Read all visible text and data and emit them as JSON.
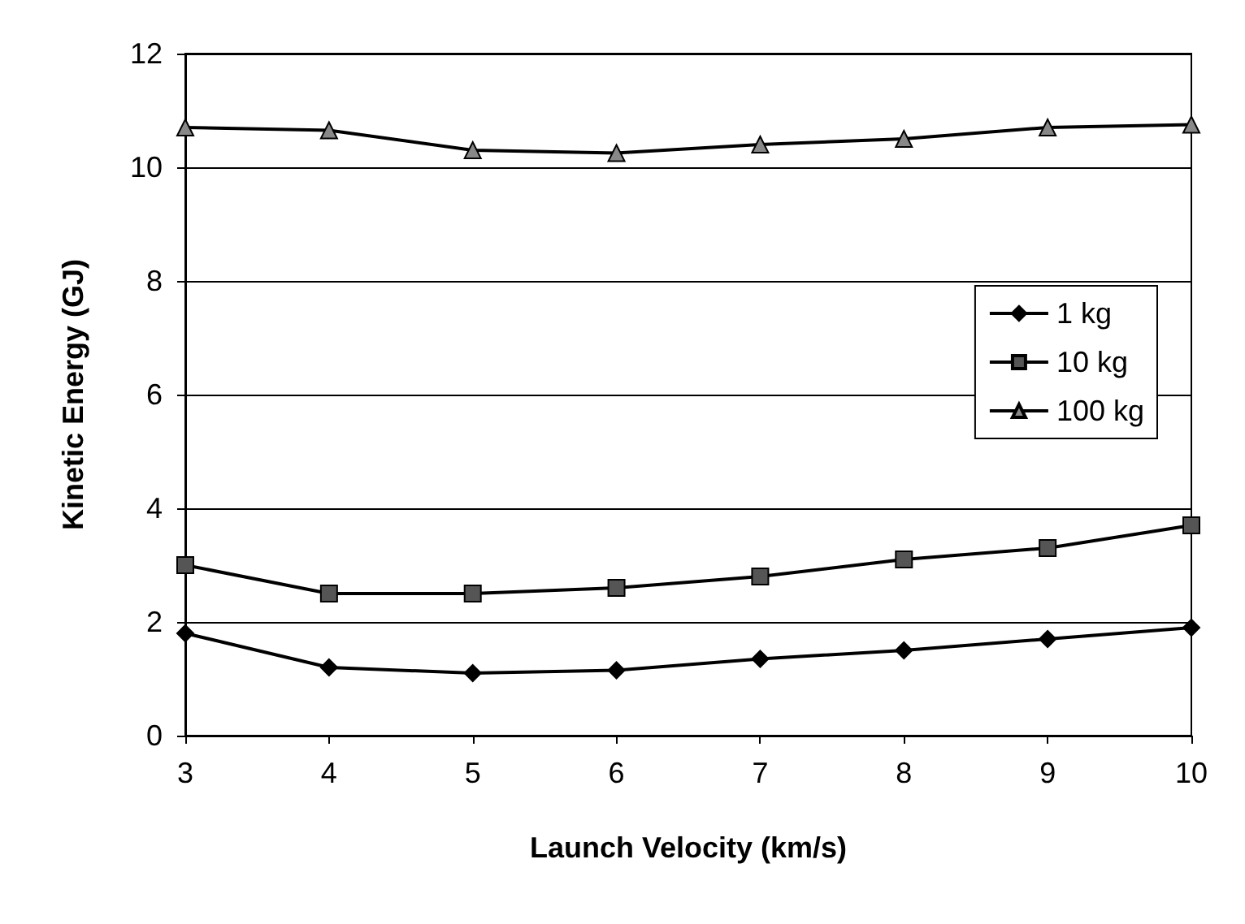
{
  "chart_data": {
    "type": "line",
    "xlabel": "Launch Velocity (km/s)",
    "ylabel": "Kinetic Energy (GJ)",
    "x": [
      3,
      4,
      5,
      6,
      7,
      8,
      9,
      10
    ],
    "series": [
      {
        "name": "1 kg",
        "color": "#000000",
        "marker": "diamond",
        "values": [
          1.8,
          1.2,
          1.1,
          1.15,
          1.35,
          1.5,
          1.7,
          1.9
        ]
      },
      {
        "name": "10 kg",
        "color": "#555555",
        "marker": "square",
        "values": [
          3.0,
          2.5,
          2.5,
          2.6,
          2.8,
          3.1,
          3.3,
          3.7
        ]
      },
      {
        "name": "100 kg",
        "color": "#888888",
        "marker": "triangle",
        "values": [
          10.7,
          10.65,
          10.3,
          10.25,
          10.4,
          10.5,
          10.7,
          10.75
        ]
      }
    ],
    "xlim": [
      3,
      10
    ],
    "xticks": [
      3,
      4,
      5,
      6,
      7,
      8,
      9,
      10
    ],
    "ylim": [
      0,
      12
    ],
    "yticks": [
      0,
      2,
      4,
      6,
      8,
      10,
      12
    ],
    "grid": "y",
    "legend": "right",
    "line_style": "solid"
  }
}
